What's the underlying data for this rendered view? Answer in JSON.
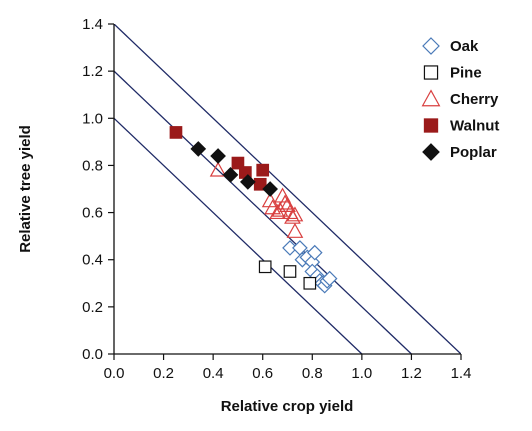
{
  "chart_data": {
    "type": "scatter",
    "xlabel": "Relative crop yield",
    "ylabel": "Relative tree yield",
    "xlim": [
      0,
      1.4
    ],
    "ylim": [
      0,
      1.4
    ],
    "xticks": [
      "0.0",
      "0.2",
      "0.4",
      "0.6",
      "0.8",
      "1.0",
      "1.2",
      "1.4"
    ],
    "yticks": [
      "0.0",
      "0.2",
      "0.4",
      "0.6",
      "0.8",
      "1.0",
      "1.2",
      "1.4"
    ],
    "grid": false,
    "legend_position": "top-right",
    "reference_lines": [
      {
        "intercept": 1.0,
        "slope": -1
      },
      {
        "intercept": 1.2,
        "slope": -1
      },
      {
        "intercept": 1.4,
        "slope": -1
      }
    ],
    "reference_line_color": "#1f2a66",
    "series": [
      {
        "name": "Oak",
        "marker": "diamond-open",
        "color": "#4a7ab8",
        "points": [
          [
            0.71,
            0.45
          ],
          [
            0.75,
            0.45
          ],
          [
            0.76,
            0.4
          ],
          [
            0.78,
            0.41
          ],
          [
            0.8,
            0.39
          ],
          [
            0.81,
            0.43
          ],
          [
            0.8,
            0.35
          ],
          [
            0.82,
            0.33
          ],
          [
            0.83,
            0.31
          ],
          [
            0.84,
            0.3
          ],
          [
            0.85,
            0.29
          ],
          [
            0.86,
            0.31
          ],
          [
            0.87,
            0.32
          ]
        ]
      },
      {
        "name": "Pine",
        "marker": "square-open",
        "color": "#111111",
        "points": [
          [
            0.61,
            0.37
          ],
          [
            0.71,
            0.35
          ],
          [
            0.79,
            0.3
          ]
        ]
      },
      {
        "name": "Cherry",
        "marker": "triangle-open",
        "color": "#d94040",
        "points": [
          [
            0.42,
            0.78
          ],
          [
            0.63,
            0.65
          ],
          [
            0.64,
            0.62
          ],
          [
            0.66,
            0.6
          ],
          [
            0.67,
            0.61
          ],
          [
            0.68,
            0.67
          ],
          [
            0.69,
            0.64
          ],
          [
            0.7,
            0.63
          ],
          [
            0.71,
            0.6
          ],
          [
            0.72,
            0.58
          ],
          [
            0.73,
            0.59
          ],
          [
            0.73,
            0.52
          ]
        ]
      },
      {
        "name": "Walnut",
        "marker": "square-filled",
        "color": "#9b1a1a",
        "points": [
          [
            0.25,
            0.94
          ],
          [
            0.5,
            0.81
          ],
          [
            0.53,
            0.77
          ],
          [
            0.59,
            0.72
          ],
          [
            0.6,
            0.78
          ]
        ]
      },
      {
        "name": "Poplar",
        "marker": "diamond-filled",
        "color": "#111111",
        "points": [
          [
            0.34,
            0.87
          ],
          [
            0.42,
            0.84
          ],
          [
            0.47,
            0.76
          ],
          [
            0.54,
            0.73
          ],
          [
            0.63,
            0.7
          ]
        ]
      }
    ]
  }
}
